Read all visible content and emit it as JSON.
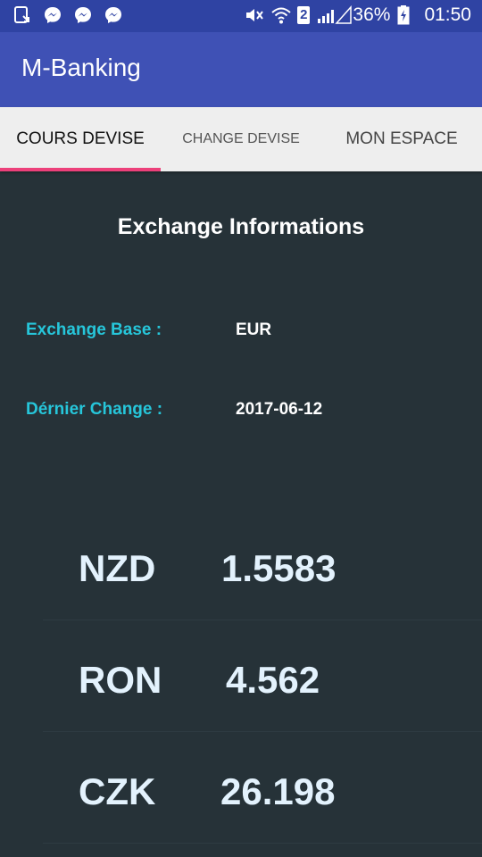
{
  "status_bar": {
    "battery": "36%",
    "time": "01:50",
    "sim": "2",
    "icons": [
      "download-icon",
      "messenger-icon",
      "messenger-icon",
      "messenger-icon",
      "mute-icon",
      "wifi-icon",
      "signal-icon",
      "battery-icon"
    ]
  },
  "app_bar": {
    "title": "M-Banking",
    "color": "#3f51b5"
  },
  "tabs": [
    {
      "label": "COURS DEVISE",
      "selected": true
    },
    {
      "label": "CHANGE DEVISE",
      "selected": false
    },
    {
      "label": "MON ESPACE",
      "selected": false
    }
  ],
  "accent": "#ec407a",
  "main": {
    "heading": "Exchange Informations",
    "base_label": "Exchange Base :",
    "base_value": "EUR",
    "date_label": "Dérnier Change :",
    "date_value": "2017-06-12",
    "rates": [
      {
        "currency": "NZD",
        "rate": "1.5583"
      },
      {
        "currency": "RON",
        "rate": "4.562"
      },
      {
        "currency": "CZK",
        "rate": "26.198"
      }
    ]
  }
}
